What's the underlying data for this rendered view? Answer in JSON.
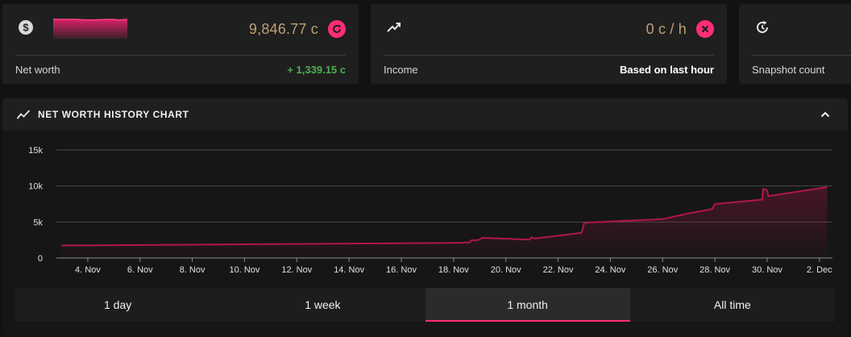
{
  "cards": [
    {
      "id": "net-worth",
      "icon": "dollar-icon",
      "value": "9,846.77 c",
      "action_icon": "refresh-icon",
      "label": "Net worth",
      "detail": "+ 1,339.15 c",
      "sparkline": [
        1.0,
        1.0,
        1.0,
        1.0,
        0.98,
        0.97,
        0.98,
        0.99,
        1.0,
        0.97,
        1.0
      ]
    },
    {
      "id": "income",
      "icon": "trending-up-icon",
      "value": "0 c / h",
      "action_icon": "close-icon",
      "label": "Income",
      "detail": "Based on last hour"
    },
    {
      "id": "snapshot-count",
      "icon": "history-icon",
      "label": "Snapshot count"
    }
  ],
  "panel": {
    "title": "NET WORTH HISTORY CHART",
    "title_icon": "chart-line-icon",
    "collapse_icon": "chevron-up-icon"
  },
  "chart_data": {
    "type": "area",
    "title": "",
    "xlabel": "",
    "ylabel": "",
    "x_ticks": [
      "4. Nov",
      "6. Nov",
      "8. Nov",
      "10. Nov",
      "12. Nov",
      "14. Nov",
      "16. Nov",
      "18. Nov",
      "20. Nov",
      "22. Nov",
      "24. Nov",
      "26. Nov",
      "28. Nov",
      "30. Nov",
      "2. Dec"
    ],
    "xlim": [
      2.8,
      32.5
    ],
    "y_ticks": [
      "0",
      "5k",
      "10k",
      "15k"
    ],
    "y_tick_values": [
      0,
      5000,
      10000,
      15000
    ],
    "ylim": [
      0,
      15000
    ],
    "grid": true,
    "series": [
      {
        "color": "#b0164a",
        "points": [
          [
            3.0,
            1700
          ],
          [
            3.1,
            1750
          ],
          [
            4.0,
            1750
          ],
          [
            6.0,
            1800
          ],
          [
            8.0,
            1850
          ],
          [
            10.0,
            1900
          ],
          [
            12.0,
            1950
          ],
          [
            14.0,
            2000
          ],
          [
            16.0,
            2050
          ],
          [
            18.0,
            2100
          ],
          [
            18.6,
            2150
          ],
          [
            18.7,
            2500
          ],
          [
            18.8,
            2450
          ],
          [
            19.0,
            2550
          ],
          [
            19.1,
            2800
          ],
          [
            20.9,
            2550
          ],
          [
            21.0,
            2900
          ],
          [
            21.1,
            2700
          ],
          [
            22.9,
            3500
          ],
          [
            23.0,
            4900
          ],
          [
            26.0,
            5400
          ],
          [
            27.0,
            6200
          ],
          [
            27.9,
            6800
          ],
          [
            28.0,
            7500
          ],
          [
            29.8,
            8100
          ],
          [
            29.85,
            9600
          ],
          [
            30.0,
            9400
          ],
          [
            30.05,
            8600
          ],
          [
            32.3,
            9850
          ]
        ]
      }
    ]
  },
  "ranges": {
    "active": 2,
    "items": [
      "1 day",
      "1 week",
      "1 month",
      "All time"
    ]
  }
}
